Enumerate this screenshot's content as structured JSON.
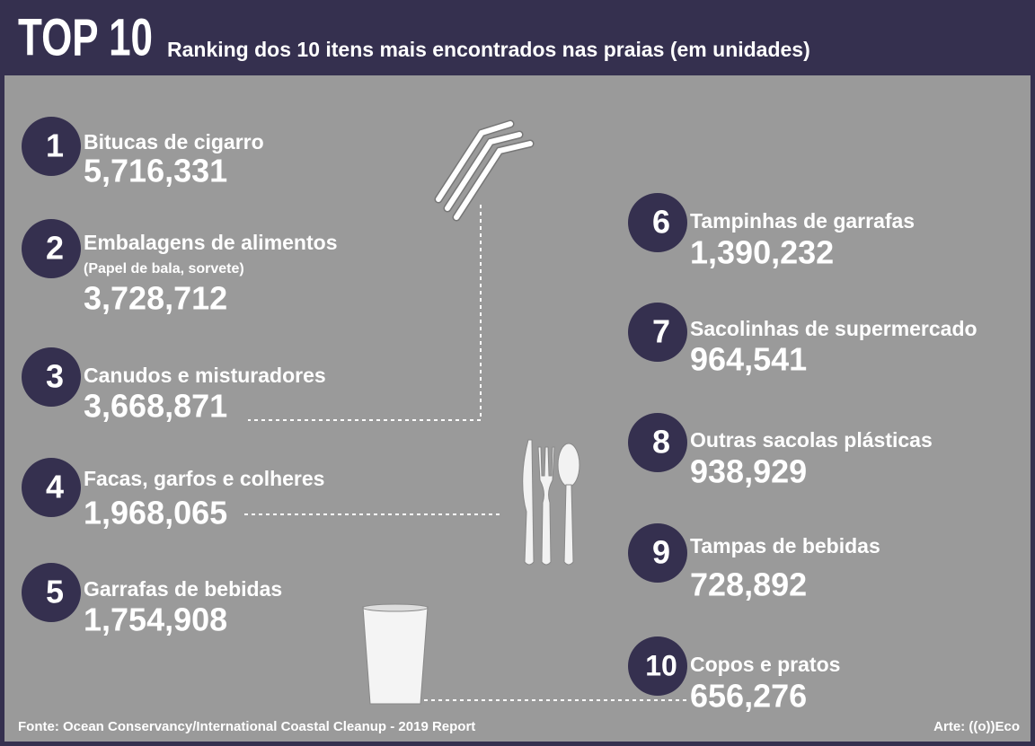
{
  "header": {
    "title": "TOP 10",
    "subtitle": "Ranking dos 10 itens mais encontrados nas praias (em unidades)"
  },
  "items": [
    {
      "rank": 1,
      "label": "Bitucas de cigarro",
      "value": "5,716,331"
    },
    {
      "rank": 2,
      "label": "Embalagens de alimentos",
      "note": "(Papel de bala, sorvete)",
      "value": "3,728,712"
    },
    {
      "rank": 3,
      "label": "Canudos e misturadores",
      "value": "3,668,871"
    },
    {
      "rank": 4,
      "label": "Facas, garfos e colheres",
      "value": "1,968,065"
    },
    {
      "rank": 5,
      "label": "Garrafas de bebidas",
      "value": "1,754,908"
    },
    {
      "rank": 6,
      "label": "Tampinhas de garrafas",
      "value": "1,390,232"
    },
    {
      "rank": 7,
      "label": "Sacolinhas de supermercado",
      "value": "964,541"
    },
    {
      "rank": 8,
      "label": "Outras sacolas plásticas",
      "value": "938,929"
    },
    {
      "rank": 9,
      "label": "Tampas de bebidas",
      "value": "728,892"
    },
    {
      "rank": 10,
      "label": "Copos e pratos",
      "value": "656,276"
    }
  ],
  "footer": {
    "source": "Fonte: Ocean Conservancy/International Coastal Cleanup - 2019 Report",
    "credit": "Arte: ((o))Eco"
  }
}
